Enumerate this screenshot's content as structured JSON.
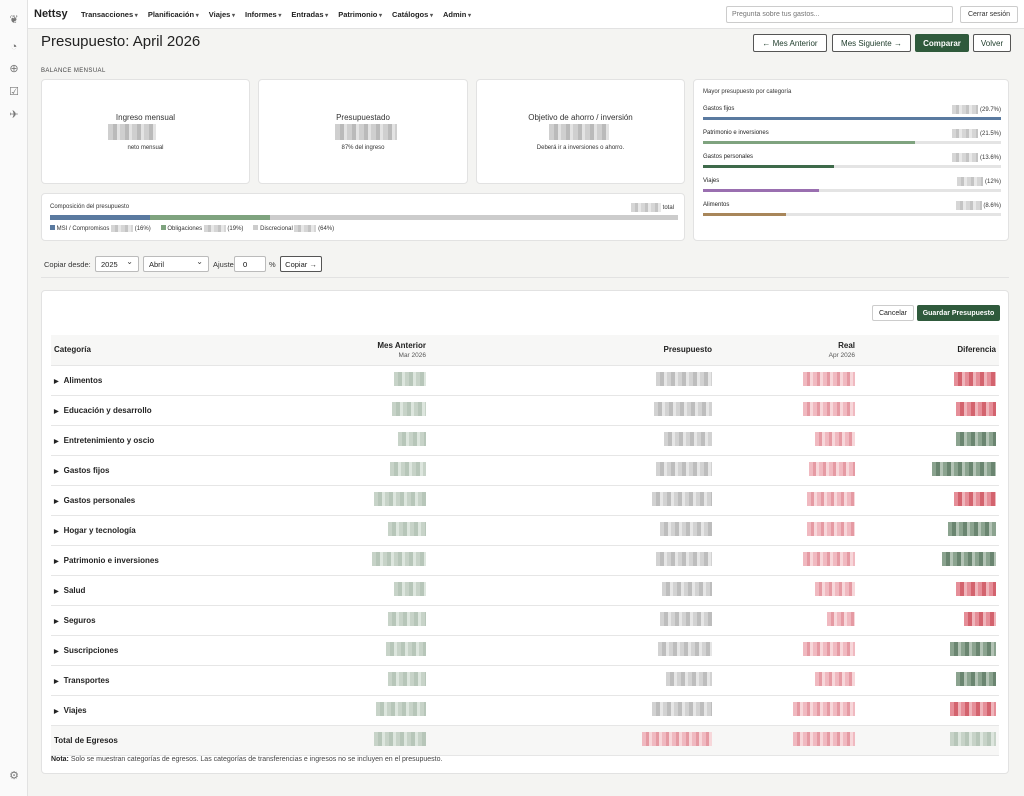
{
  "nav": {
    "brand": "Nettsy",
    "menus": [
      "Transacciones",
      "Planificación",
      "Viajes",
      "Informes",
      "Entradas",
      "Patrimonio",
      "Catálogos",
      "Admin"
    ],
    "ask_placeholder": "Pregunta sobre tus gastos...",
    "logout": "Cerrar sesión"
  },
  "rail_icons": [
    "leaf-icon",
    "gauge-icon",
    "plus-circle-icon",
    "check-square-icon",
    "plane-icon",
    "settings-icon"
  ],
  "page": {
    "title": "Presupuesto: April 2026",
    "prev_label": "← Mes Anterior",
    "next_label": "Mes Siguiente →",
    "compare_label": "Comparar",
    "back_label": "Volver",
    "section_label": "BALANCE MENSUAL"
  },
  "kpis": [
    {
      "label": "Ingreso mensual",
      "sub": "neto mensual"
    },
    {
      "label": "Presupuestado",
      "sub": "87% del ingreso"
    },
    {
      "label": "Objetivo de ahorro / inversión",
      "sub": "Deberá ir a inversiones o ahorro."
    }
  ],
  "composition": {
    "title": "Composición del presupuesto",
    "total_label": "total",
    "parts": [
      {
        "label": "MSI / Compromisos",
        "pct": "(16%)",
        "value": 16,
        "color": "#5a7aa0"
      },
      {
        "label": "Obligaciones",
        "pct": "(19%)",
        "value": 19,
        "color": "#7fa37f"
      },
      {
        "label": "Discrecional",
        "pct": "(64%)",
        "value": 64,
        "color": "#cccccc"
      }
    ]
  },
  "top_categories": {
    "title": "Mayor presupuesto por categoría",
    "items": [
      {
        "label": "Gastos fijos",
        "pct": "(29.7%)",
        "fill": 100,
        "color": "#5a7aa0"
      },
      {
        "label": "Patrimonio e inversiones",
        "pct": "(21.5%)",
        "fill": 71,
        "color": "#7fa37f"
      },
      {
        "label": "Gastos personales",
        "pct": "(13.6%)",
        "fill": 44,
        "color": "#3e6a4a"
      },
      {
        "label": "Viajes",
        "pct": "(12%)",
        "fill": 39,
        "color": "#9a6fb0"
      },
      {
        "label": "Alimentos",
        "pct": "(8.6%)",
        "fill": 28,
        "color": "#a8865a"
      }
    ]
  },
  "copy": {
    "from_label": "Copiar desde:",
    "year": "2025",
    "month": "Abril",
    "adjust_label": "Ajuste",
    "adjust_value": "0",
    "pct_sign": "%",
    "copy_button": "Copiar →"
  },
  "table": {
    "cancel": "Cancelar",
    "save": "Guardar Presupuesto",
    "headers": {
      "category": "Categoría",
      "prev": "Mes Anterior",
      "prev_sub": "Mar 2026",
      "budget": "Presupuesto",
      "real": "Real",
      "real_sub": "Apr 2026",
      "diff": "Diferencia"
    },
    "rows": [
      {
        "name": "Alimentos",
        "diff": "neg"
      },
      {
        "name": "Educación y desarrollo",
        "diff": "neg"
      },
      {
        "name": "Entretenimiento y oscio",
        "diff": "pos"
      },
      {
        "name": "Gastos fijos",
        "diff": "pos"
      },
      {
        "name": "Gastos personales",
        "diff": "neg"
      },
      {
        "name": "Hogar y tecnología",
        "diff": "pos"
      },
      {
        "name": "Patrimonio e inversiones",
        "diff": "pos"
      },
      {
        "name": "Salud",
        "diff": "neg"
      },
      {
        "name": "Seguros",
        "diff": "neg"
      },
      {
        "name": "Suscripciones",
        "diff": "pos"
      },
      {
        "name": "Transportes",
        "diff": "pos"
      },
      {
        "name": "Viajes",
        "diff": "neg"
      }
    ],
    "total_label": "Total de Egresos"
  },
  "note": {
    "bold": "Nota:",
    "text": " Solo se muestran categorías de egresos. Las categorías de transferencias e ingresos no se incluyen en el presupuesto."
  }
}
